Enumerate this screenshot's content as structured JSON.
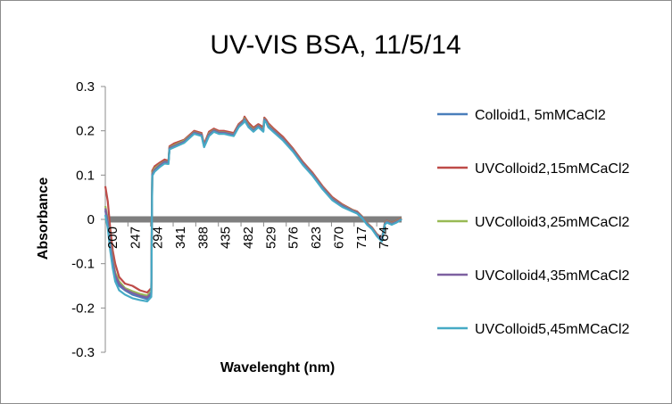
{
  "chart_data": {
    "type": "line",
    "title": "UV-VIS BSA, 11/5/14",
    "xlabel": "Wavelenght (nm)",
    "ylabel": "Absorbance",
    "ylim": [
      -0.3,
      0.3
    ],
    "y_ticks": [
      "0.3",
      "0.2",
      "0.1",
      "0",
      "-0.1",
      "-0.2",
      "-0.3"
    ],
    "xlim": [
      200,
      800
    ],
    "x_tick_labels": [
      "200",
      "247",
      "294",
      "341",
      "388",
      "435",
      "482",
      "529",
      "576",
      "623",
      "670",
      "717",
      "764"
    ],
    "grid": false,
    "legend_position": "right",
    "zero_line_color": "#7f7f7f",
    "series": [
      {
        "name": "Colloid1, 5mMCaCl2",
        "color": "#4a7ebb",
        "x": [
          200,
          205,
          210,
          215,
          220,
          228,
          240,
          255,
          270,
          285,
          293,
          295,
          300,
          310,
          320,
          328,
          330,
          340,
          360,
          380,
          395,
          400,
          410,
          420,
          430,
          440,
          460,
          470,
          480,
          482,
          490,
          500,
          510,
          520,
          522,
          526,
          530,
          540,
          560,
          580,
          600,
          620,
          640,
          660,
          680,
          700,
          710,
          720,
          730,
          740,
          750,
          760,
          766,
          770,
          780,
          790,
          800
        ],
        "y": [
          0.02,
          -0.01,
          -0.06,
          -0.1,
          -0.13,
          -0.15,
          -0.16,
          -0.17,
          -0.175,
          -0.18,
          -0.17,
          0.1,
          0.11,
          0.12,
          0.128,
          0.128,
          0.16,
          0.165,
          0.175,
          0.195,
          0.19,
          0.165,
          0.19,
          0.2,
          0.195,
          0.195,
          0.19,
          0.21,
          0.22,
          0.225,
          0.21,
          0.2,
          0.21,
          0.2,
          0.225,
          0.22,
          0.21,
          0.2,
          0.18,
          0.155,
          0.125,
          0.1,
          0.07,
          0.045,
          0.03,
          0.02,
          0.015,
          0.005,
          -0.01,
          -0.02,
          -0.035,
          -0.045,
          -0.01,
          -0.005,
          -0.01,
          -0.005,
          0.0
        ]
      },
      {
        "name": "UVColloid2,15mMCaCl2",
        "color": "#be4b48",
        "x": [
          200,
          205,
          210,
          215,
          220,
          228,
          240,
          255,
          270,
          285,
          293,
          295,
          300,
          310,
          320,
          328,
          330,
          340,
          360,
          380,
          395,
          400,
          410,
          420,
          430,
          440,
          460,
          470,
          480,
          482,
          490,
          500,
          510,
          520,
          522,
          526,
          530,
          540,
          560,
          580,
          600,
          620,
          640,
          660,
          680,
          700,
          710,
          720,
          730,
          740,
          750,
          760,
          766,
          770,
          780,
          790,
          800
        ],
        "y": [
          0.075,
          0.04,
          -0.02,
          -0.07,
          -0.1,
          -0.13,
          -0.145,
          -0.15,
          -0.16,
          -0.165,
          -0.155,
          0.11,
          0.12,
          0.128,
          0.135,
          0.132,
          0.165,
          0.172,
          0.18,
          0.2,
          0.195,
          0.17,
          0.198,
          0.205,
          0.2,
          0.2,
          0.195,
          0.215,
          0.225,
          0.232,
          0.218,
          0.207,
          0.215,
          0.208,
          0.23,
          0.225,
          0.217,
          0.206,
          0.186,
          0.16,
          0.13,
          0.105,
          0.075,
          0.05,
          0.034,
          0.022,
          0.018,
          0.007,
          -0.008,
          -0.018,
          -0.033,
          -0.042,
          -0.008,
          -0.003,
          -0.008,
          -0.003,
          0.003
        ]
      },
      {
        "name": "UVColloid3,25mMCaCl2",
        "color": "#98b954",
        "x": [
          200,
          205,
          210,
          215,
          220,
          228,
          240,
          255,
          270,
          285,
          293,
          295,
          300,
          310,
          320,
          328,
          330,
          340,
          360,
          380,
          395,
          400,
          410,
          420,
          430,
          440,
          460,
          470,
          480,
          482,
          490,
          500,
          510,
          520,
          522,
          526,
          530,
          540,
          560,
          580,
          600,
          620,
          640,
          660,
          680,
          700,
          710,
          720,
          730,
          740,
          750,
          760,
          766,
          770,
          780,
          790,
          800
        ],
        "y": [
          0.03,
          0.0,
          -0.05,
          -0.09,
          -0.12,
          -0.14,
          -0.155,
          -0.162,
          -0.168,
          -0.172,
          -0.162,
          0.105,
          0.115,
          0.124,
          0.131,
          0.13,
          0.162,
          0.168,
          0.178,
          0.197,
          0.192,
          0.167,
          0.194,
          0.202,
          0.197,
          0.197,
          0.192,
          0.212,
          0.222,
          0.228,
          0.213,
          0.203,
          0.212,
          0.203,
          0.227,
          0.222,
          0.213,
          0.202,
          0.182,
          0.157,
          0.127,
          0.102,
          0.072,
          0.047,
          0.032,
          0.021,
          0.016,
          0.006,
          -0.009,
          -0.019,
          -0.034,
          -0.044,
          -0.009,
          -0.004,
          -0.009,
          -0.004,
          0.002
        ]
      },
      {
        "name": "UVColloid4,35mMCaCl2",
        "color": "#7d60a0",
        "x": [
          200,
          205,
          210,
          215,
          220,
          228,
          240,
          255,
          270,
          285,
          293,
          295,
          300,
          310,
          320,
          328,
          330,
          340,
          360,
          380,
          395,
          400,
          410,
          420,
          430,
          440,
          460,
          470,
          480,
          482,
          490,
          500,
          510,
          520,
          522,
          526,
          530,
          540,
          560,
          580,
          600,
          620,
          640,
          660,
          680,
          700,
          710,
          720,
          730,
          740,
          750,
          760,
          766,
          770,
          780,
          790,
          800
        ],
        "y": [
          0.025,
          -0.005,
          -0.055,
          -0.095,
          -0.125,
          -0.145,
          -0.158,
          -0.166,
          -0.172,
          -0.176,
          -0.166,
          0.102,
          0.112,
          0.122,
          0.13,
          0.129,
          0.161,
          0.166,
          0.176,
          0.196,
          0.191,
          0.166,
          0.192,
          0.201,
          0.196,
          0.196,
          0.191,
          0.211,
          0.221,
          0.226,
          0.211,
          0.201,
          0.211,
          0.201,
          0.226,
          0.221,
          0.211,
          0.201,
          0.181,
          0.156,
          0.126,
          0.101,
          0.071,
          0.046,
          0.031,
          0.02,
          0.015,
          0.005,
          -0.01,
          -0.02,
          -0.035,
          -0.045,
          -0.01,
          -0.005,
          -0.01,
          -0.005,
          0.001
        ]
      },
      {
        "name": "UVColloid5,45mMCaCl2",
        "color": "#46aac5",
        "x": [
          200,
          205,
          210,
          215,
          220,
          228,
          240,
          255,
          270,
          285,
          293,
          295,
          300,
          310,
          320,
          328,
          330,
          340,
          360,
          380,
          395,
          400,
          410,
          420,
          430,
          440,
          460,
          470,
          480,
          482,
          490,
          500,
          510,
          520,
          522,
          526,
          530,
          540,
          560,
          580,
          600,
          620,
          640,
          660,
          680,
          700,
          710,
          720,
          730,
          740,
          750,
          760,
          766,
          770,
          780,
          790,
          800
        ],
        "y": [
          0.01,
          -0.02,
          -0.07,
          -0.11,
          -0.14,
          -0.16,
          -0.17,
          -0.178,
          -0.182,
          -0.185,
          -0.175,
          0.098,
          0.108,
          0.118,
          0.126,
          0.125,
          0.158,
          0.163,
          0.173,
          0.193,
          0.188,
          0.163,
          0.188,
          0.198,
          0.193,
          0.193,
          0.188,
          0.208,
          0.218,
          0.223,
          0.208,
          0.198,
          0.208,
          0.198,
          0.223,
          0.218,
          0.208,
          0.198,
          0.178,
          0.153,
          0.123,
          0.098,
          0.068,
          0.043,
          0.028,
          0.018,
          0.013,
          0.003,
          -0.012,
          -0.022,
          -0.038,
          -0.05,
          -0.012,
          -0.007,
          -0.012,
          -0.007,
          0.0
        ]
      }
    ]
  }
}
